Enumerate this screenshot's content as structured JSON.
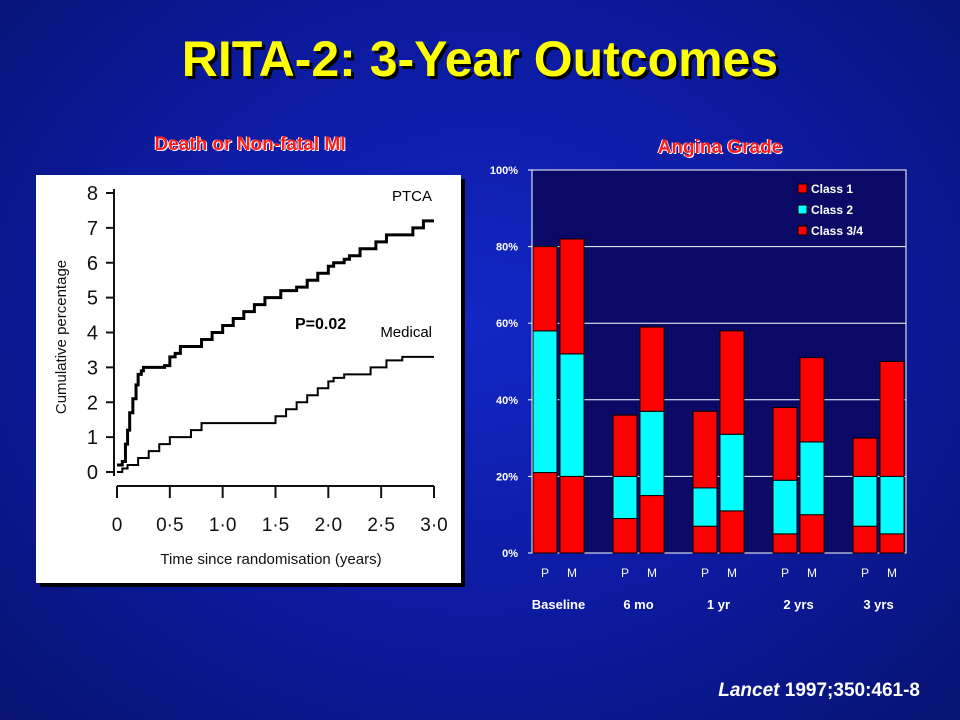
{
  "slide": {
    "title": "RITA-2:  3-Year Outcomes",
    "citation_journal": "Lancet",
    "citation_ref": " 1997;350:461-8"
  },
  "left_panel": {
    "subtitle": "Death or Non-fatal MI",
    "ylabel": "Cumulative percentage",
    "xlabel": "Time since randomisation (years)",
    "pvalue": "P=0.02"
  },
  "right_panel": {
    "subtitle": "Angina Grade"
  },
  "chart_data": [
    {
      "type": "line",
      "title": "Death or Non-fatal MI",
      "xlabel": "Time since randomisation (years)",
      "ylabel": "Cumulative percentage",
      "x_ticks": [
        "0",
        "0·5",
        "1·0",
        "1·5",
        "2·0",
        "2·5",
        "3·0"
      ],
      "y_ticks": [
        "0",
        "1",
        "2",
        "3",
        "4",
        "5",
        "6",
        "7",
        "8"
      ],
      "xlim": [
        0,
        3.0
      ],
      "ylim": [
        0,
        8
      ],
      "annotation": "P=0.02",
      "series": [
        {
          "name": "PTCA",
          "points": [
            [
              0,
              0.2
            ],
            [
              0.05,
              0.3
            ],
            [
              0.08,
              0.8
            ],
            [
              0.1,
              1.2
            ],
            [
              0.12,
              1.7
            ],
            [
              0.15,
              2.1
            ],
            [
              0.18,
              2.5
            ],
            [
              0.2,
              2.8
            ],
            [
              0.23,
              2.9
            ],
            [
              0.25,
              3.0
            ],
            [
              0.3,
              3.0
            ],
            [
              0.45,
              3.05
            ],
            [
              0.5,
              3.3
            ],
            [
              0.55,
              3.4
            ],
            [
              0.6,
              3.6
            ],
            [
              0.7,
              3.6
            ],
            [
              0.8,
              3.8
            ],
            [
              0.9,
              4.0
            ],
            [
              1.0,
              4.2
            ],
            [
              1.1,
              4.4
            ],
            [
              1.2,
              4.6
            ],
            [
              1.3,
              4.8
            ],
            [
              1.4,
              5.0
            ],
            [
              1.55,
              5.2
            ],
            [
              1.7,
              5.3
            ],
            [
              1.8,
              5.5
            ],
            [
              1.9,
              5.7
            ],
            [
              2.0,
              5.9
            ],
            [
              2.05,
              6.0
            ],
            [
              2.15,
              6.1
            ],
            [
              2.2,
              6.2
            ],
            [
              2.3,
              6.4
            ],
            [
              2.45,
              6.6
            ],
            [
              2.55,
              6.8
            ],
            [
              2.8,
              7.0
            ],
            [
              2.9,
              7.2
            ],
            [
              3.0,
              7.2
            ]
          ]
        },
        {
          "name": "Medical",
          "points": [
            [
              0,
              0
            ],
            [
              0.05,
              0.1
            ],
            [
              0.1,
              0.2
            ],
            [
              0.2,
              0.4
            ],
            [
              0.3,
              0.6
            ],
            [
              0.4,
              0.8
            ],
            [
              0.5,
              1.0
            ],
            [
              0.7,
              1.2
            ],
            [
              0.8,
              1.4
            ],
            [
              1.0,
              1.4
            ],
            [
              1.25,
              1.4
            ],
            [
              1.5,
              1.6
            ],
            [
              1.6,
              1.8
            ],
            [
              1.7,
              2.0
            ],
            [
              1.8,
              2.2
            ],
            [
              1.9,
              2.4
            ],
            [
              2.0,
              2.6
            ],
            [
              2.05,
              2.7
            ],
            [
              2.15,
              2.8
            ],
            [
              2.3,
              2.8
            ],
            [
              2.4,
              3.0
            ],
            [
              2.55,
              3.2
            ],
            [
              2.7,
              3.3
            ],
            [
              3.0,
              3.3
            ]
          ]
        }
      ]
    },
    {
      "type": "bar",
      "stacked": true,
      "title": "Angina Grade",
      "ylim": [
        0,
        100
      ],
      "y_ticks": [
        "0%",
        "20%",
        "40%",
        "60%",
        "80%",
        "100%"
      ],
      "groups": [
        "Baseline",
        "6 mo",
        "1 yr",
        "2 yrs",
        "3 yrs"
      ],
      "bar_labels": [
        "P",
        "M"
      ],
      "legend_position": "top-right",
      "legend": [
        "Class 1",
        "Class 2",
        "Class 3/4"
      ],
      "colors": {
        "segment_low": "#ff0000",
        "segment_mid": "#00ffff",
        "segment_top": "#ff0000",
        "plot_bg": "#0a0a66"
      },
      "bars": [
        {
          "group": "Baseline",
          "arm": "P",
          "segments": [
            21,
            37,
            22
          ]
        },
        {
          "group": "Baseline",
          "arm": "M",
          "segments": [
            20,
            32,
            30
          ]
        },
        {
          "group": "6 mo",
          "arm": "P",
          "segments": [
            9,
            11,
            16
          ]
        },
        {
          "group": "6 mo",
          "arm": "M",
          "segments": [
            15,
            22,
            22
          ]
        },
        {
          "group": "1 yr",
          "arm": "P",
          "segments": [
            7,
            10,
            20
          ]
        },
        {
          "group": "1 yr",
          "arm": "M",
          "segments": [
            11,
            20,
            27
          ]
        },
        {
          "group": "2 yrs",
          "arm": "P",
          "segments": [
            5,
            14,
            19
          ]
        },
        {
          "group": "2 yrs",
          "arm": "M",
          "segments": [
            10,
            19,
            22
          ]
        },
        {
          "group": "3 yrs",
          "arm": "P",
          "segments": [
            7,
            13,
            10
          ]
        },
        {
          "group": "3 yrs",
          "arm": "M",
          "segments": [
            5,
            15,
            30
          ]
        }
      ]
    }
  ]
}
